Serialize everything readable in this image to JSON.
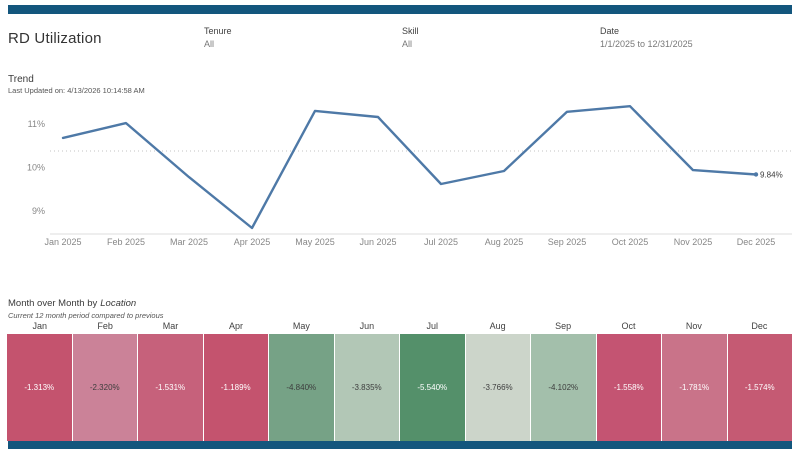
{
  "header": {
    "title": "RD Utilization"
  },
  "accent": {
    "bar_color": "#13567d",
    "line_color": "#4e79a7"
  },
  "filters": [
    {
      "label": "Tenure",
      "value": "All"
    },
    {
      "label": "Skill",
      "value": "All"
    },
    {
      "label": "Date",
      "value": "1/1/2025 to 12/31/2025"
    }
  ],
  "trend": {
    "title": "Trend",
    "last_updated": "Last Updated on: 4/13/2026 10:14:58 AM",
    "end_label": "9.84%"
  },
  "mom": {
    "title_prefix": "Month over Month by",
    "title_emphasis": "Location",
    "subtitle": "Current 12  month period compared to previous"
  },
  "chart_data": [
    {
      "type": "line",
      "title": "Trend",
      "x": [
        "Jan 2025",
        "Feb 2025",
        "Mar 2025",
        "Apr 2025",
        "May 2025",
        "Jun 2025",
        "Jul 2025",
        "Aug 2025",
        "Sep 2025",
        "Oct 2025",
        "Nov 2025",
        "Dec 2025"
      ],
      "values": [
        10.68,
        11.02,
        9.78,
        8.61,
        11.3,
        11.16,
        9.62,
        9.92,
        11.28,
        11.41,
        9.94,
        9.84
      ],
      "ylabel": "",
      "yticks": [
        {
          "v": 11,
          "label": "11%"
        },
        {
          "v": 10,
          "label": "10%"
        },
        {
          "v": 9,
          "label": "9%"
        }
      ],
      "ylim": [
        8.3,
        11.7
      ],
      "reference_line": 10.38,
      "end_point_label": "9.84%",
      "line_color": "#4e79a7",
      "grid": "off"
    },
    {
      "type": "heatmap",
      "title": "Month over Month by Location",
      "subtitle": "Current 12  month period compared to previous",
      "categories": [
        "Jan",
        "Feb",
        "Mar",
        "Apr",
        "May",
        "Jun",
        "Jul",
        "Aug",
        "Sep",
        "Oct",
        "Nov",
        "Dec"
      ],
      "values": [
        -1.313,
        -2.32,
        -1.531,
        -1.189,
        -4.84,
        -3.835,
        -5.54,
        -3.766,
        -4.102,
        -1.558,
        -1.781,
        -1.574
      ],
      "labels": [
        "-1.313%",
        "-2.320%",
        "-1.531%",
        "-1.189%",
        "-4.840%",
        "-3.835%",
        "-5.540%",
        "-3.766%",
        "-4.102%",
        "-1.558%",
        "-1.781%",
        "-1.574%"
      ],
      "cell_colors": [
        "#c4536e",
        "#cb8298",
        "#c6617b",
        "#c4536e",
        "#76a286",
        "#b2c7b6",
        "#54906a",
        "#ccd5ca",
        "#a3bfab",
        "#c45472",
        "#c97389",
        "#c55a73"
      ],
      "text_colors": [
        "#ffffff",
        "#3d3d3d",
        "#ffffff",
        "#ffffff",
        "#3d3d3d",
        "#3d3d3d",
        "#ffffff",
        "#3d3d3d",
        "#3d3d3d",
        "#ffffff",
        "#ffffff",
        "#ffffff"
      ]
    }
  ]
}
